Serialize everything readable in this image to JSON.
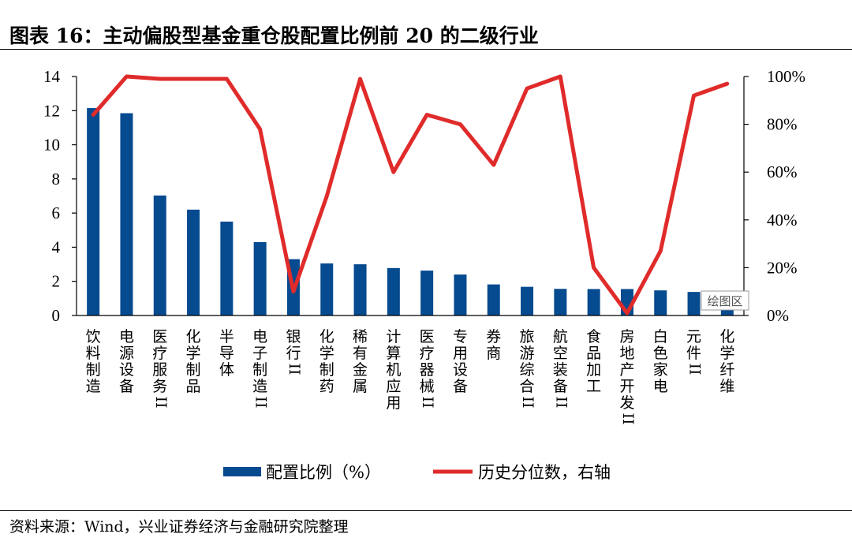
{
  "header": {
    "title": "图表 16：主动偏股型基金重仓股配置比例前 20 的二级行业"
  },
  "footer": {
    "source": "资料来源：Wind，兴业证券经济与金融研究院整理"
  },
  "watermark": "绘图区",
  "chart_data": {
    "type": "bar",
    "categories": [
      "饮料制造",
      "电源设备",
      "医疗服务II",
      "化学制品",
      "半导体",
      "电子制造II",
      "银行II",
      "化学制药",
      "稀有金属",
      "计算机应用",
      "医疗器械II",
      "专用设备",
      "券商",
      "旅游综合II",
      "航空装备II",
      "食品加工",
      "房地产开发II",
      "白色家电",
      "元件II",
      "化学纤维"
    ],
    "series": [
      {
        "name": "配置比例（%）",
        "type": "bar",
        "axis": "left",
        "color": "#064A8F",
        "values": [
          12.15,
          11.85,
          7.03,
          6.2,
          5.5,
          4.3,
          3.3,
          3.05,
          3.0,
          2.78,
          2.63,
          2.4,
          1.82,
          1.68,
          1.56,
          1.55,
          1.55,
          1.47,
          1.38,
          1.3
        ]
      },
      {
        "name": "历史分位数，右轴",
        "type": "line",
        "axis": "right",
        "color": "#E02B2B",
        "values": [
          84,
          100,
          99,
          99,
          99,
          78,
          10,
          50,
          99,
          60,
          84,
          80,
          63,
          95,
          100,
          20,
          1,
          27,
          92,
          97
        ]
      }
    ],
    "y_left": {
      "min": 0,
      "max": 14,
      "ticks": [
        0,
        2,
        4,
        6,
        8,
        10,
        12,
        14
      ]
    },
    "y_right": {
      "min": 0,
      "max": 100,
      "ticks": [
        "0%",
        "20%",
        "40%",
        "60%",
        "80%",
        "100%"
      ]
    },
    "legend": {
      "position": "bottom"
    },
    "grid": false
  }
}
